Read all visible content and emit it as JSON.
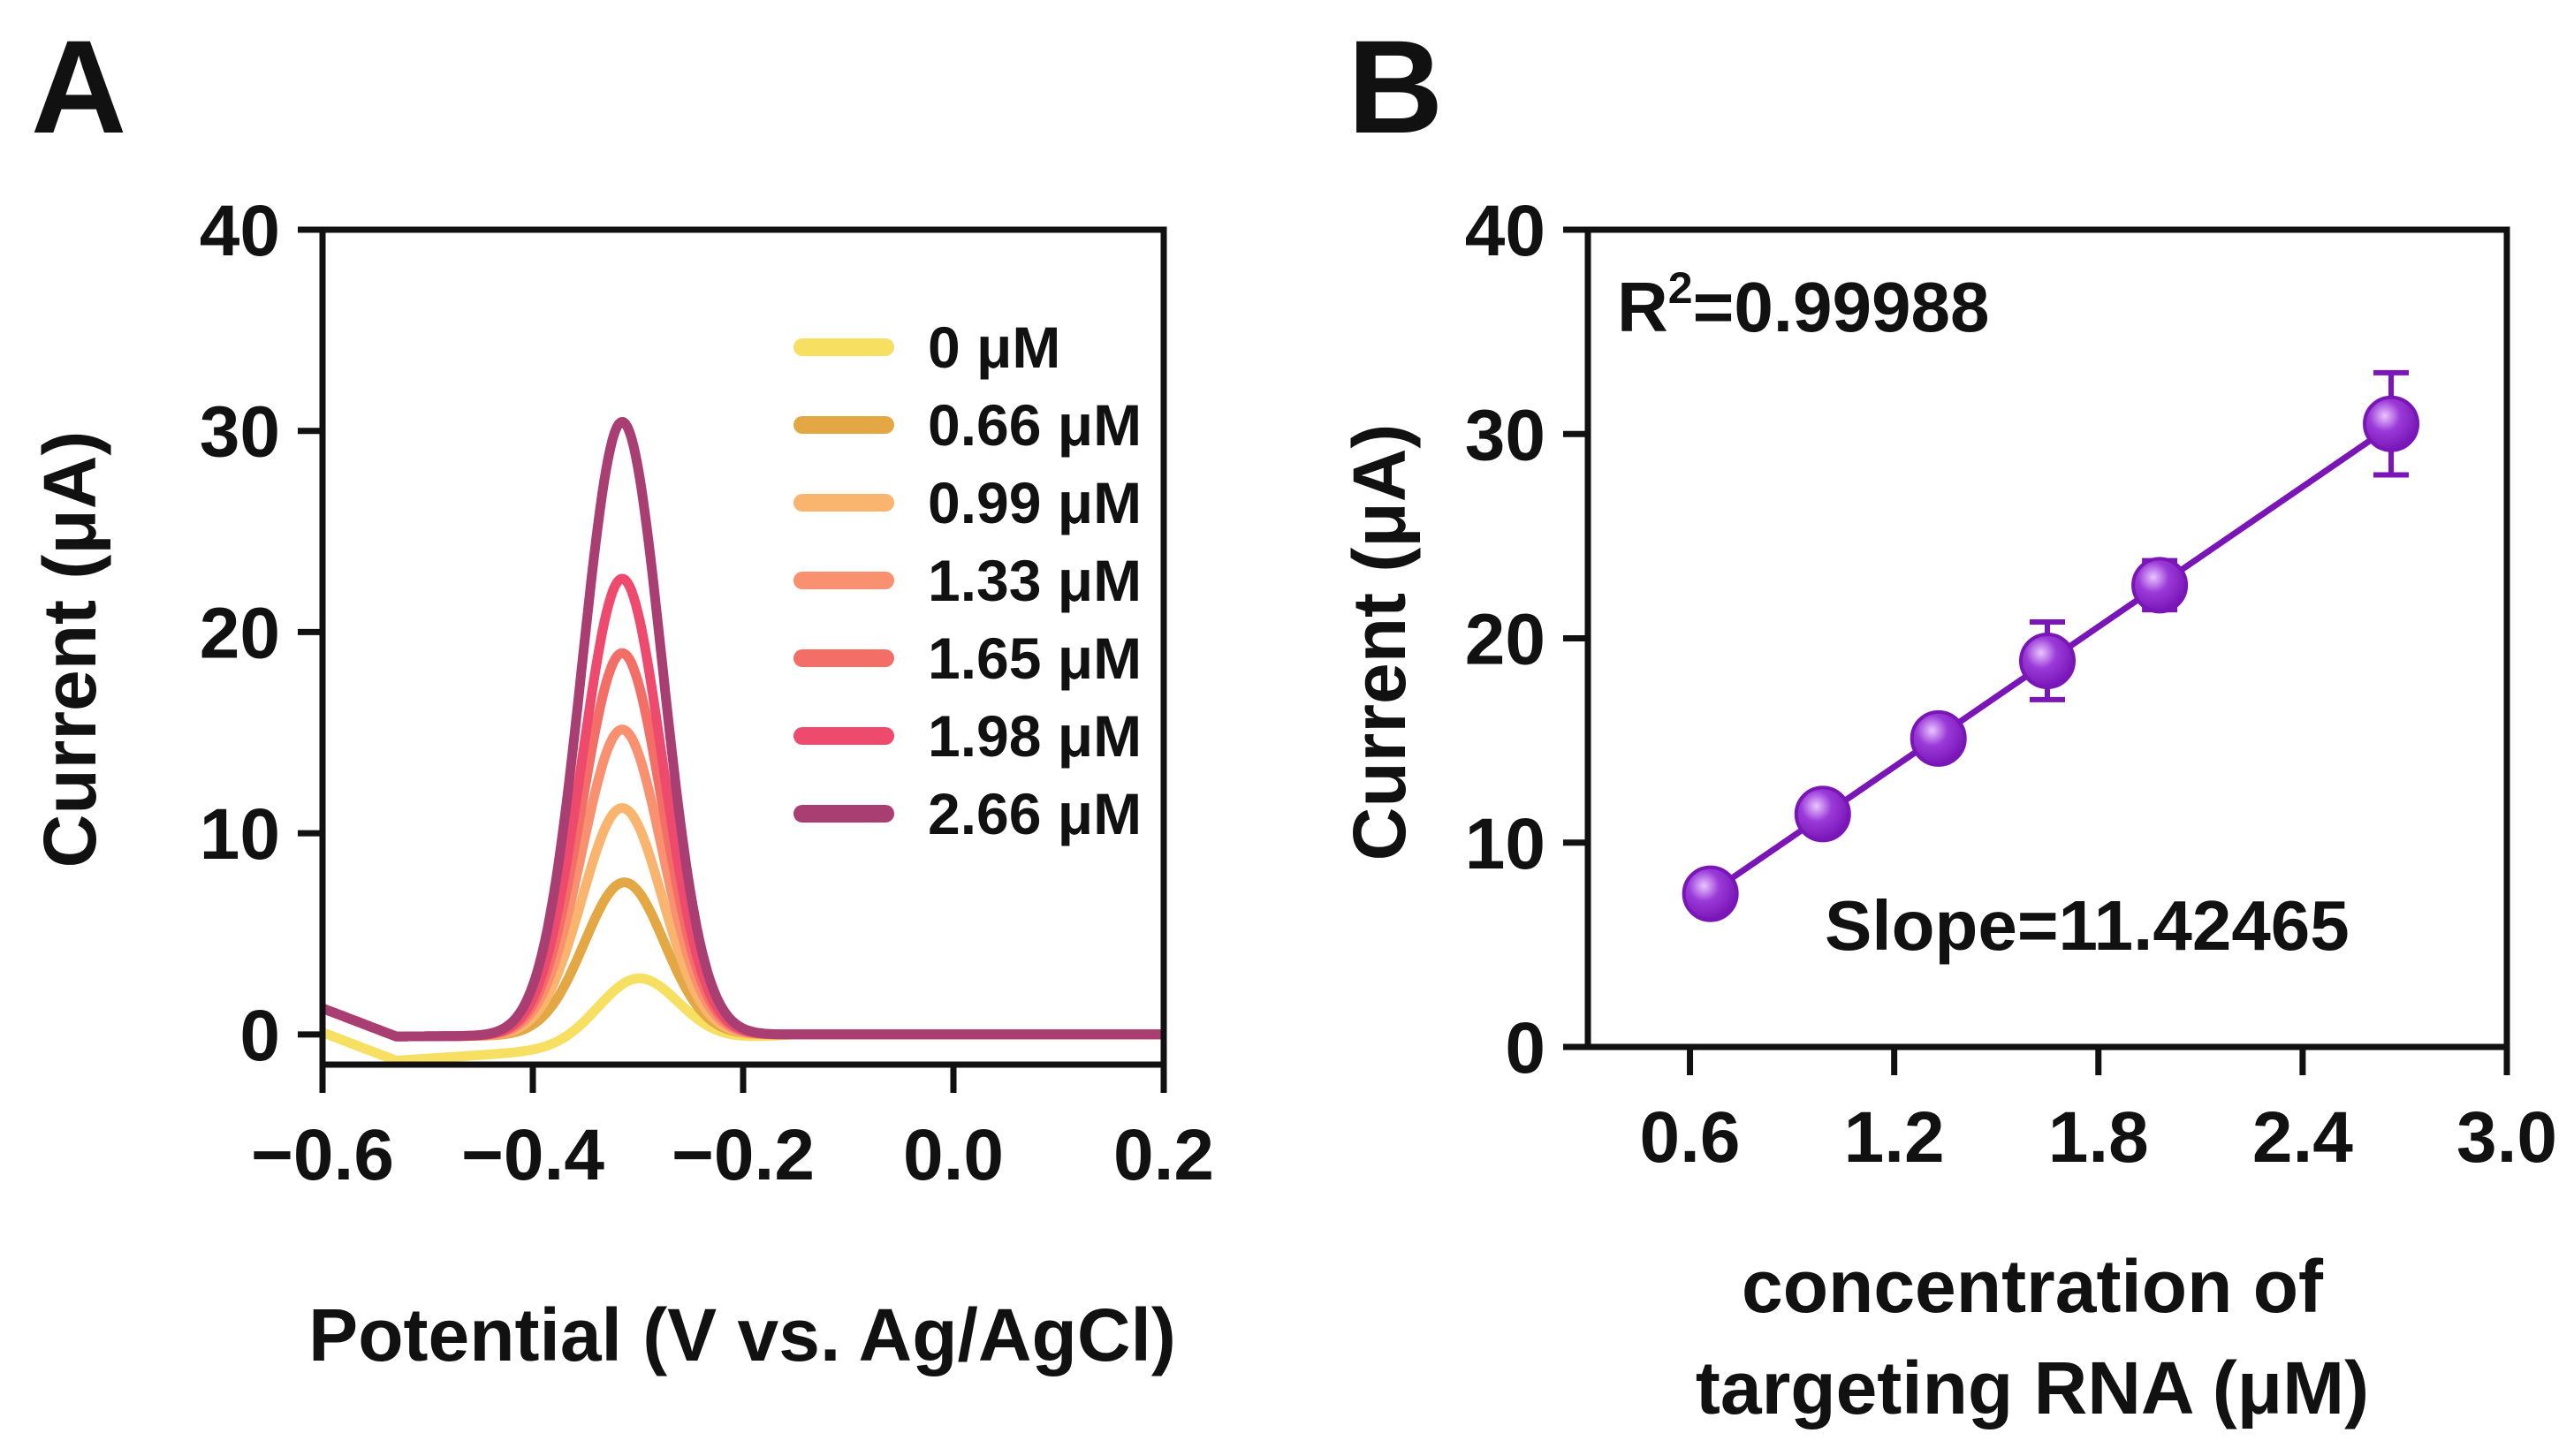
{
  "chart_data": [
    {
      "panel": "A",
      "type": "line",
      "title": "",
      "xlabel": "Potential (V vs. Ag/AgCl)",
      "ylabel": "Current (μA)",
      "xlim": [
        -0.6,
        0.2
      ],
      "ylim": [
        -1.5,
        40
      ],
      "xticks": [
        -0.6,
        -0.4,
        -0.2,
        0.0,
        0.2
      ],
      "xtick_labels": [
        "−0.6",
        "−0.4",
        "−0.2",
        "0.0",
        "0.2"
      ],
      "yticks": [
        0,
        10,
        20,
        30,
        40
      ],
      "ytick_labels": [
        "0",
        "10",
        "20",
        "30",
        "40"
      ],
      "legend_position": "top-right",
      "grid": false,
      "series": [
        {
          "name": "0 μM",
          "color": "#F7DF61",
          "peak_current": 3.3,
          "peak_potential": -0.3
        },
        {
          "name": "0.66 μM",
          "color": "#E3A843",
          "peak_current": 7.6,
          "peak_potential": -0.313
        },
        {
          "name": "0.99 μM",
          "color": "#F9B56E",
          "peak_current": 11.3,
          "peak_potential": -0.315
        },
        {
          "name": "1.33 μM",
          "color": "#F99070",
          "peak_current": 15.2,
          "peak_potential": -0.315
        },
        {
          "name": "1.65 μM",
          "color": "#F46E68",
          "peak_current": 19.0,
          "peak_potential": -0.315
        },
        {
          "name": "1.98 μM",
          "color": "#EE4A6E",
          "peak_current": 22.7,
          "peak_potential": -0.315
        },
        {
          "name": "2.66 μM",
          "color": "#A93E72",
          "peak_current": 30.5,
          "peak_potential": -0.315
        }
      ]
    },
    {
      "panel": "B",
      "type": "scatter",
      "title": "",
      "xlabel_lines": [
        "concentration of",
        "targeting RNA (μM)"
      ],
      "ylabel": "Current (μA)",
      "xlim": [
        0.3,
        3.0
      ],
      "ylim": [
        0,
        40
      ],
      "xticks": [
        0.6,
        1.2,
        1.8,
        2.4,
        3.0
      ],
      "xtick_labels": [
        "0.6",
        "1.2",
        "1.8",
        "2.4",
        "3.0"
      ],
      "yticks": [
        0,
        10,
        20,
        30,
        40
      ],
      "ytick_labels": [
        "0",
        "10",
        "20",
        "30",
        "40"
      ],
      "grid": false,
      "color": "#7A16B8",
      "x": [
        0.66,
        0.99,
        1.33,
        1.65,
        1.98,
        2.66
      ],
      "y": [
        7.5,
        11.4,
        15.1,
        18.9,
        22.6,
        30.5
      ],
      "error": [
        0.4,
        0.5,
        0.7,
        1.9,
        1.2,
        2.5
      ],
      "fit": {
        "slope": 11.42465,
        "intercept": 0.0,
        "x_range": [
          0.66,
          2.66
        ]
      },
      "annotations": {
        "r_squared_label": "R",
        "r_squared_sup": "2",
        "r_squared_value": "=0.99988",
        "slope_text": "Slope=11.42465"
      }
    }
  ]
}
